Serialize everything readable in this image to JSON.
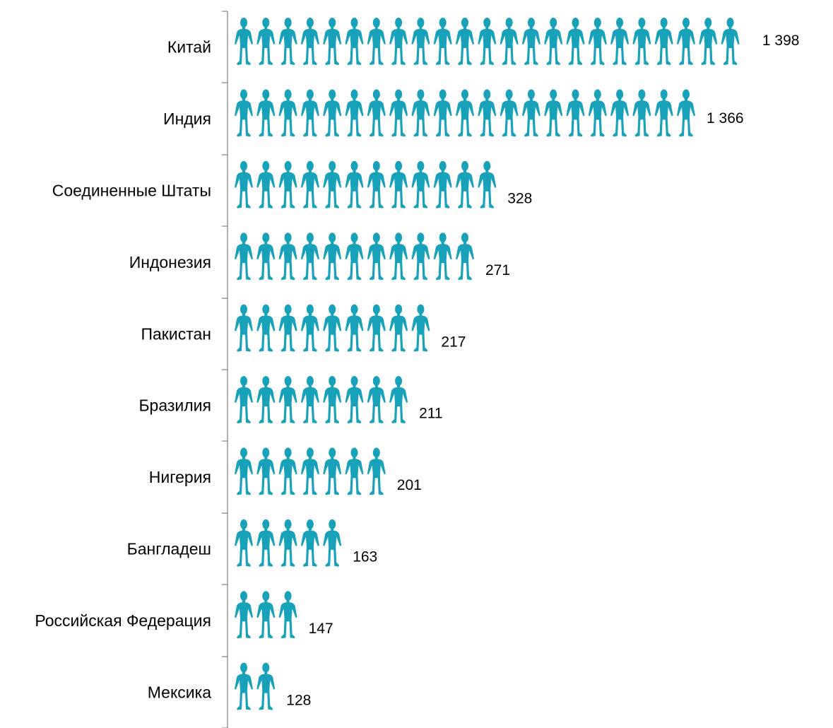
{
  "chart_data": {
    "type": "bar",
    "title": "",
    "xlabel": "",
    "ylabel": "",
    "categories": [
      "Китай",
      "Индия",
      "Соединенные Штаты",
      "Индонезия",
      "Пакистан",
      "Бразилия",
      "Нигерия",
      "Бангладеш",
      "Российская Федерация",
      "Мексика"
    ],
    "values": [
      1398,
      1366,
      328,
      271,
      217,
      211,
      201,
      163,
      147,
      128
    ],
    "value_labels": [
      "1 398",
      "1 366",
      "328",
      "271",
      "217",
      "211",
      "201",
      "163",
      "147",
      "128"
    ],
    "icon_counts": [
      23.5,
      21,
      12,
      11,
      9,
      8,
      7,
      5,
      3,
      2
    ],
    "icon": "person-icon",
    "color": "#18A2BA",
    "grid": false,
    "legend": "none"
  }
}
